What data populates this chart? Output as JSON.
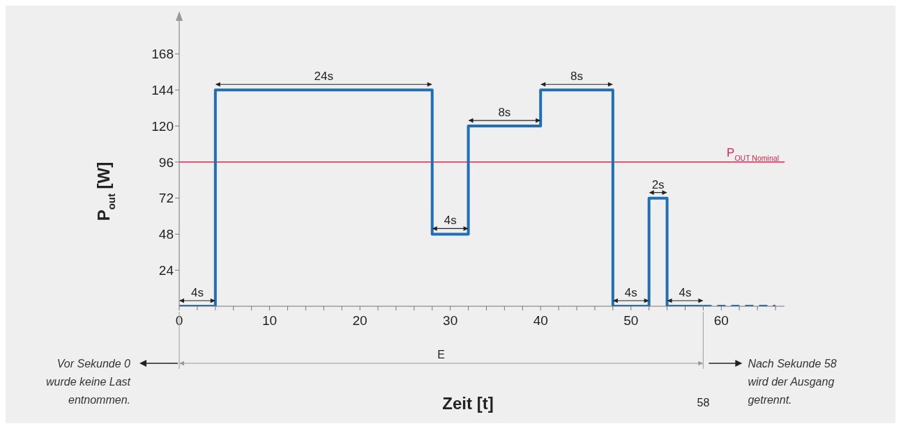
{
  "chart_data": {
    "type": "step",
    "xlabel": "Zeit [t]",
    "ylabel": "P$_{out}$ [W]",
    "xlim": [
      0,
      67
    ],
    "ylim": [
      0,
      190
    ],
    "xticks": [
      0,
      {
        "value": 2,
        "label": null
      },
      {
        "value": 4,
        "label": null
      },
      {
        "value": 6,
        "label": null
      },
      {
        "value": 8,
        "label": null
      },
      10,
      {
        "value": 12,
        "label": null
      },
      {
        "value": 14,
        "label": null
      },
      {
        "value": 16,
        "label": null
      },
      {
        "value": 18,
        "label": null
      },
      20,
      {
        "value": 22,
        "label": null
      },
      {
        "value": 24,
        "label": null
      },
      {
        "value": 26,
        "label": null
      },
      {
        "value": 28,
        "label": null
      },
      30,
      {
        "value": 32,
        "label": null
      },
      {
        "value": 34,
        "label": null
      },
      {
        "value": 36,
        "label": null
      },
      {
        "value": 38,
        "label": null
      },
      40,
      {
        "value": 42,
        "label": null
      },
      {
        "value": 44,
        "label": null
      },
      {
        "value": 46,
        "label": null
      },
      {
        "value": 48,
        "label": null
      },
      50,
      {
        "value": 52,
        "label": null
      },
      {
        "value": 54,
        "label": null
      },
      {
        "value": 56,
        "label": null
      },
      {
        "value": 58,
        "label": null
      },
      60,
      {
        "value": 62,
        "label": null
      },
      {
        "value": 64,
        "label": null
      },
      {
        "value": 66,
        "label": null
      }
    ],
    "yticks": [
      24,
      48,
      72,
      96,
      120,
      144,
      168
    ],
    "series": [
      {
        "color": "#1f6fb8",
        "x": [
          0,
          4,
          28,
          32,
          40,
          48,
          52,
          54,
          58
        ],
        "values": [
          0,
          144,
          48,
          120,
          144,
          0,
          72,
          0,
          0
        ]
      },
      {
        "color": "#1f6fb8",
        "x": [
          58,
          66
        ],
        "values": [
          0,
          0
        ],
        "line_style": "dashed"
      }
    ],
    "ref_lines": [
      {
        "axis": "y",
        "value": 96,
        "label": "P$_{OUT Nominal}$",
        "color": "#e8214a"
      }
    ],
    "annotations": [
      "4s",
      "24s",
      "4s",
      "8s",
      "8s",
      "4s",
      "2s",
      "4s",
      "E",
      "58",
      "Vor Sekunde 0\nwurde keine Last\nentnommen.",
      "Nach Sekunde 58\nwird der Ausgang\ngetrennt."
    ],
    "grid": false,
    "marker": "none",
    "line_style": "solid"
  }
}
